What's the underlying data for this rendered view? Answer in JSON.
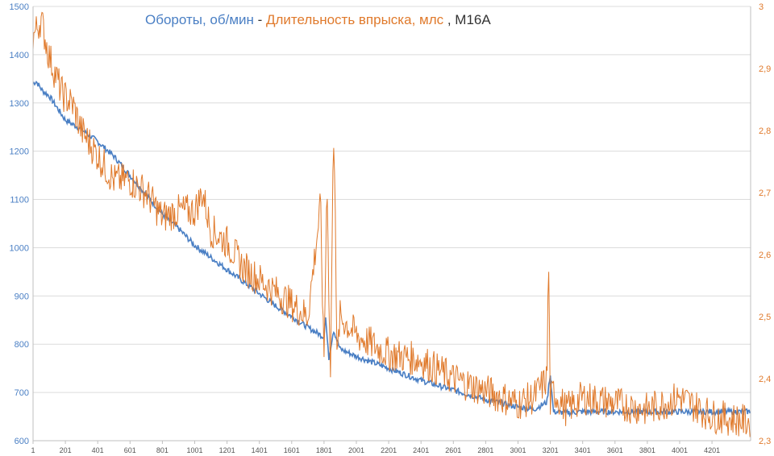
{
  "chart_data": {
    "type": "line",
    "title": {
      "rpm": "Обороты, об/мин",
      "dash": " - ",
      "inj": "Длительность впрыска, млс",
      "model": " , М16А"
    },
    "x_ticks": [
      "1",
      "201",
      "401",
      "601",
      "801",
      "1001",
      "1201",
      "1401",
      "1601",
      "1801",
      "2001",
      "2201",
      "2401",
      "2601",
      "2801",
      "3001",
      "3201",
      "3401",
      "3601",
      "3801",
      "4001",
      "4201"
    ],
    "x_range": [
      1,
      4440
    ],
    "y_left": {
      "range": [
        600,
        1500
      ],
      "ticks": [
        "600",
        "700",
        "800",
        "900",
        "1000",
        "1100",
        "1200",
        "1300",
        "1400",
        "1500"
      ]
    },
    "y_right": {
      "range": [
        2.3,
        3.0
      ],
      "ticks": [
        "2,3",
        "2,4",
        "2,5",
        "2,6",
        "2,7",
        "2,8",
        "2,9",
        "3"
      ]
    },
    "grid": true,
    "colors": {
      "rpm": "#4a7fc4",
      "inj": "#e07a2c"
    },
    "series": [
      {
        "name": "Обороты, об/мин",
        "axis": "left",
        "x": [
          1,
          20,
          60,
          100,
          200,
          300,
          400,
          500,
          600,
          700,
          800,
          900,
          1000,
          1100,
          1200,
          1300,
          1400,
          1500,
          1600,
          1700,
          1800,
          1810,
          1830,
          1860,
          1900,
          2000,
          2200,
          2400,
          2600,
          2800,
          3000,
          3100,
          3180,
          3200,
          3220,
          3300,
          3400,
          3600,
          3800,
          4000,
          4200,
          4440
        ],
        "y": [
          1340,
          1345,
          1325,
          1315,
          1265,
          1245,
          1220,
          1190,
          1150,
          1110,
          1070,
          1040,
          1005,
          980,
          955,
          930,
          905,
          880,
          858,
          835,
          815,
          860,
          770,
          830,
          790,
          775,
          750,
          725,
          705,
          685,
          670,
          665,
          680,
          740,
          660,
          658,
          660,
          660,
          660,
          660,
          660,
          660
        ]
      },
      {
        "name": "Длительность впрыска, млс",
        "axis": "right",
        "x": [
          1,
          50,
          100,
          180,
          250,
          300,
          400,
          500,
          600,
          700,
          800,
          900,
          1000,
          1050,
          1100,
          1200,
          1300,
          1400,
          1500,
          1600,
          1700,
          1780,
          1800,
          1820,
          1840,
          1860,
          1870,
          1880,
          1900,
          2000,
          2200,
          2400,
          2600,
          2800,
          3000,
          3100,
          3180,
          3190,
          3200,
          3220,
          3300,
          3400,
          3600,
          3800,
          4000,
          4200,
          4440
        ],
        "y": [
          2.95,
          2.98,
          2.92,
          2.86,
          2.84,
          2.8,
          2.76,
          2.72,
          2.72,
          2.7,
          2.66,
          2.67,
          2.67,
          2.7,
          2.64,
          2.62,
          2.58,
          2.56,
          2.54,
          2.52,
          2.5,
          2.68,
          2.42,
          2.73,
          2.39,
          2.8,
          2.72,
          2.42,
          2.5,
          2.47,
          2.44,
          2.43,
          2.4,
          2.38,
          2.36,
          2.37,
          2.4,
          2.6,
          2.36,
          2.38,
          2.35,
          2.37,
          2.36,
          2.35,
          2.37,
          2.34,
          2.33
        ]
      }
    ]
  }
}
